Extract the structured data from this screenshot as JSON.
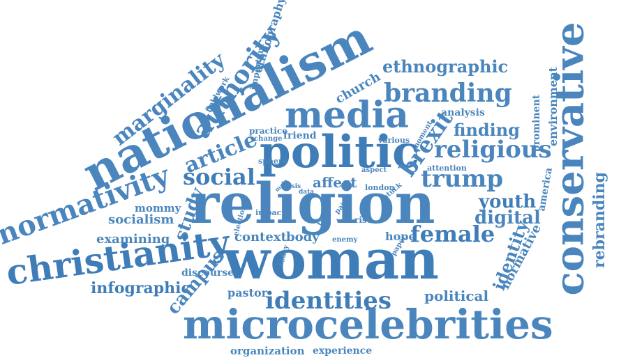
{
  "colors": {
    "primary": "#4a86bd",
    "secondary": "#3f7db8",
    "light": "#5a93c6",
    "background": "#ffffff"
  },
  "words": [
    {
      "text": "religion"
    },
    {
      "text": "woman"
    },
    {
      "text": "microcelebrities"
    },
    {
      "text": "nationalism"
    },
    {
      "text": "politic"
    },
    {
      "text": "media"
    },
    {
      "text": "conservative"
    },
    {
      "text": "christianity"
    },
    {
      "text": "normativity"
    },
    {
      "text": "branding"
    },
    {
      "text": "identities"
    },
    {
      "text": "religious"
    },
    {
      "text": "trump"
    },
    {
      "text": "female"
    },
    {
      "text": "authority"
    },
    {
      "text": "marginality"
    },
    {
      "text": "ethnographic"
    },
    {
      "text": "social"
    },
    {
      "text": "article"
    },
    {
      "text": "brexit"
    },
    {
      "text": "study"
    },
    {
      "text": "campus"
    },
    {
      "text": "youth"
    },
    {
      "text": "digital"
    },
    {
      "text": "finding"
    },
    {
      "text": "identity"
    },
    {
      "text": "rebranding"
    },
    {
      "text": "normative"
    },
    {
      "text": "ethnography"
    },
    {
      "text": "environment"
    },
    {
      "text": "prominent"
    },
    {
      "text": "america"
    },
    {
      "text": "infographic"
    },
    {
      "text": "examining"
    },
    {
      "text": "socialism"
    },
    {
      "text": "mommy"
    },
    {
      "text": "political"
    },
    {
      "text": "context"
    },
    {
      "text": "body"
    },
    {
      "text": "hope"
    },
    {
      "text": "affect"
    },
    {
      "text": "friend"
    },
    {
      "text": "church"
    },
    {
      "text": "analysis"
    },
    {
      "text": "organization"
    },
    {
      "text": "experience"
    },
    {
      "text": "pastor"
    },
    {
      "text": "discourse"
    },
    {
      "text": "important"
    },
    {
      "text": "fieldwork"
    },
    {
      "text": "practice"
    },
    {
      "text": "change"
    },
    {
      "text": "sphere"
    },
    {
      "text": "various"
    },
    {
      "text": "moment"
    },
    {
      "text": "aspect"
    },
    {
      "text": "attention"
    },
    {
      "text": "london"
    },
    {
      "text": "stuck"
    },
    {
      "text": "male"
    },
    {
      "text": "crisis"
    },
    {
      "text": "data"
    },
    {
      "text": "most"
    },
    {
      "text": "time"
    },
    {
      "text": "pain"
    },
    {
      "text": "impact"
    },
    {
      "text": "election"
    },
    {
      "text": "wife"
    },
    {
      "text": "rise"
    },
    {
      "text": "enemy"
    },
    {
      "text": "today"
    },
    {
      "text": "paper"
    }
  ]
}
